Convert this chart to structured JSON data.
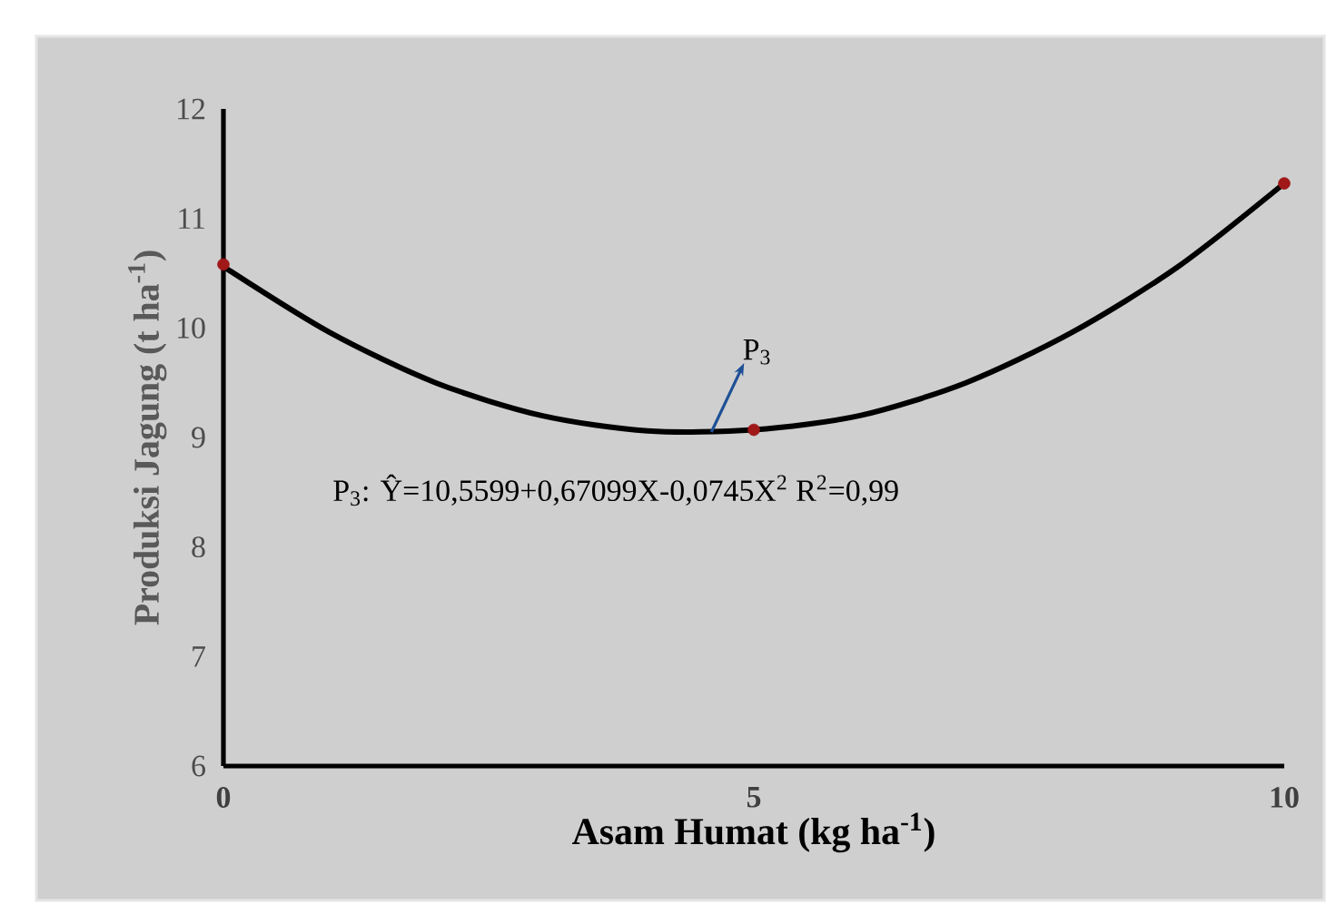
{
  "chart_data": {
    "type": "scatter",
    "xlabel": "Asam Humat (kg ha$^{-1}$)",
    "ylabel": "Produksi Jagung (t ha$^{-1}$)",
    "xlim": [
      0,
      10
    ],
    "ylim": [
      6,
      12
    ],
    "xticks": [
      0,
      5,
      10
    ],
    "yticks": [
      6,
      7,
      8,
      9,
      10,
      11,
      12
    ],
    "grid": false,
    "legend": false,
    "series": [
      {
        "type": "line",
        "color": "#000000",
        "marker": "none",
        "line_style": "solid",
        "x": [
          0,
          1,
          2,
          3,
          4,
          5,
          6,
          7,
          8,
          9,
          10
        ],
        "values": [
          10.56,
          9.96,
          9.5,
          9.2,
          9.06,
          9.07,
          9.2,
          9.5,
          9.96,
          10.56,
          11.32
        ]
      },
      {
        "color": "#a01818",
        "marker": "circle",
        "x": [
          0,
          5,
          10
        ],
        "values": [
          10.58,
          9.07,
          11.32
        ]
      }
    ],
    "annotations": [
      {
        "text": "P$_{3}$",
        "x": 4.6,
        "y": 9.05
      },
      "P$_{3}$: Ŷ=10,5599+0,67099X-0,0745X$^{2}$ R$^{2}$=0,99"
    ]
  }
}
